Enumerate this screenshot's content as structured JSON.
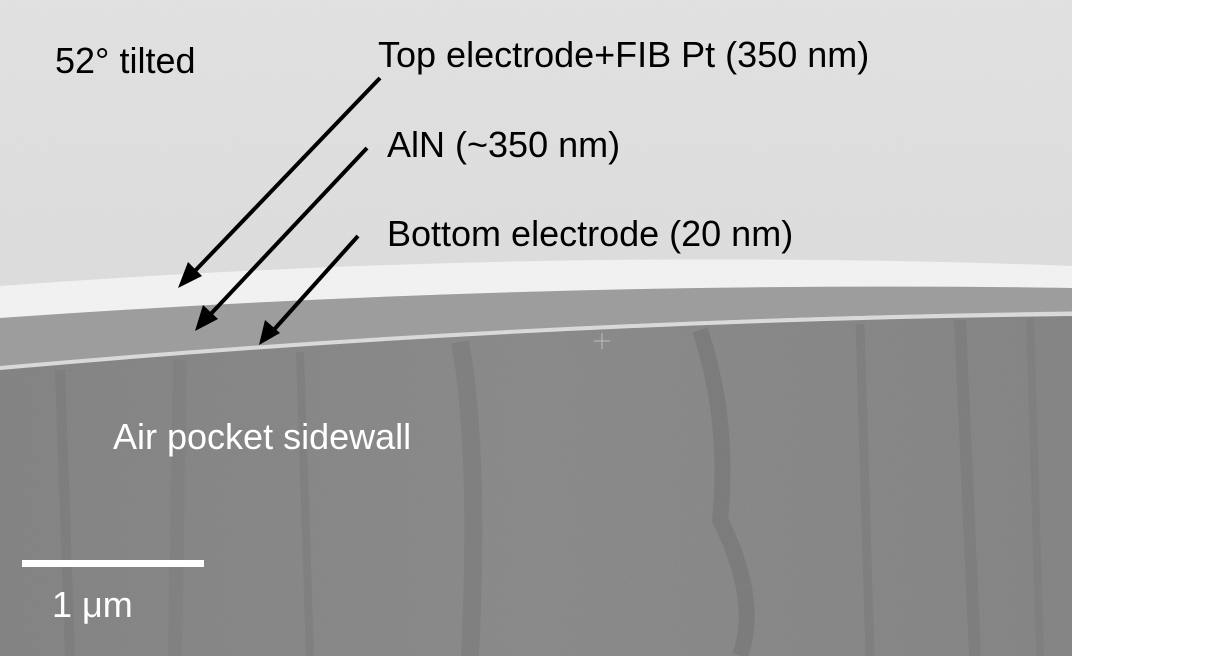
{
  "micrograph": {
    "tilt": "52° tilted",
    "annotations": {
      "top_electrode": "Top electrode+FIB Pt (350 nm)",
      "aln": "AlN (~350 nm)",
      "bottom_electrode": "Bottom electrode (20 nm)",
      "sidewall": "Air pocket sidewall"
    },
    "scale_bar": "1 μm"
  }
}
